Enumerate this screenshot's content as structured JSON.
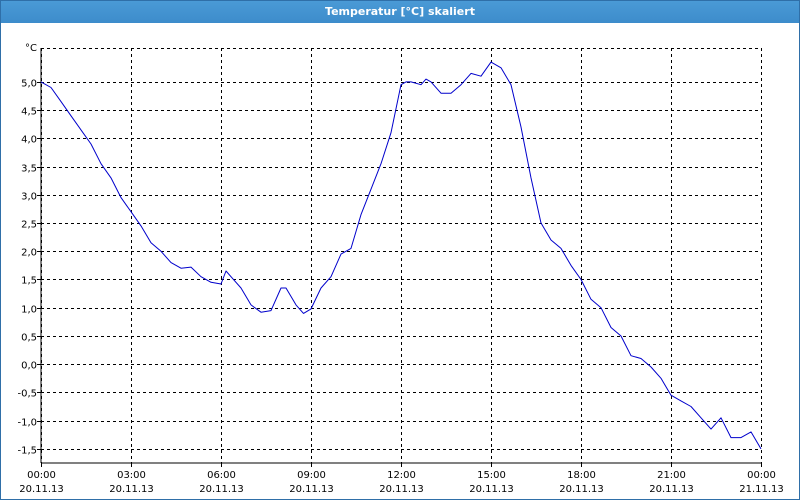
{
  "window": {
    "title": "Temperatur [°C] skaliert"
  },
  "chart_data": {
    "type": "line",
    "title": "Temperatur [°C] skaliert",
    "ylabel": "°C",
    "xlabel": "",
    "grid": true,
    "line_color": "#0000cc",
    "grid_color": "#000000",
    "ylim": [
      -1.75,
      5.6
    ],
    "xlim": [
      "2013-11-20 00:00",
      "2013-11-21 00:00"
    ],
    "y_ticks": [
      {
        "value": 5.0,
        "label": "5,0"
      },
      {
        "value": 4.5,
        "label": "4,5"
      },
      {
        "value": 4.0,
        "label": "4,0"
      },
      {
        "value": 3.5,
        "label": "3,5"
      },
      {
        "value": 3.0,
        "label": "3,0"
      },
      {
        "value": 2.5,
        "label": "2,5"
      },
      {
        "value": 2.0,
        "label": "2,0"
      },
      {
        "value": 1.5,
        "label": "1,5"
      },
      {
        "value": 1.0,
        "label": "1,0"
      },
      {
        "value": 0.5,
        "label": "0,5"
      },
      {
        "value": 0.0,
        "label": "0,0"
      },
      {
        "value": -0.5,
        "label": "-0,5"
      },
      {
        "value": -1.0,
        "label": "-1,0"
      },
      {
        "value": -1.5,
        "label": "-1,5"
      }
    ],
    "x_ticks": [
      {
        "value": "2013-11-20 00:00",
        "time": "00:00",
        "date": "20.11.13"
      },
      {
        "value": "2013-11-20 03:00",
        "time": "03:00",
        "date": "20.11.13"
      },
      {
        "value": "2013-11-20 06:00",
        "time": "06:00",
        "date": "20.11.13"
      },
      {
        "value": "2013-11-20 09:00",
        "time": "09:00",
        "date": "20.11.13"
      },
      {
        "value": "2013-11-20 12:00",
        "time": "12:00",
        "date": "20.11.13"
      },
      {
        "value": "2013-11-20 15:00",
        "time": "15:00",
        "date": "20.11.13"
      },
      {
        "value": "2013-11-20 18:00",
        "time": "18:00",
        "date": "20.11.13"
      },
      {
        "value": "2013-11-20 21:00",
        "time": "21:00",
        "date": "20.11.13"
      },
      {
        "value": "2013-11-21 00:00",
        "time": "00:00",
        "date": "21.11.13"
      }
    ],
    "series": [
      {
        "x": [
          "2013-11-20 00:00",
          "2013-11-20 00:20",
          "2013-11-20 00:40",
          "2013-11-20 01:00",
          "2013-11-20 01:20",
          "2013-11-20 01:40",
          "2013-11-20 02:00",
          "2013-11-20 02:20",
          "2013-11-20 02:40",
          "2013-11-20 03:00",
          "2013-11-20 03:20",
          "2013-11-20 03:40",
          "2013-11-20 04:00",
          "2013-11-20 04:20",
          "2013-11-20 04:40",
          "2013-11-20 05:00",
          "2013-11-20 05:20",
          "2013-11-20 05:40",
          "2013-11-20 06:00",
          "2013-11-20 06:10",
          "2013-11-20 06:20",
          "2013-11-20 06:40",
          "2013-11-20 07:00",
          "2013-11-20 07:20",
          "2013-11-20 07:40",
          "2013-11-20 08:00",
          "2013-11-20 08:10",
          "2013-11-20 08:30",
          "2013-11-20 08:45",
          "2013-11-20 09:00",
          "2013-11-20 09:20",
          "2013-11-20 09:40",
          "2013-11-20 10:00",
          "2013-11-20 10:20",
          "2013-11-20 10:40",
          "2013-11-20 11:00",
          "2013-11-20 11:20",
          "2013-11-20 11:40",
          "2013-11-20 12:00",
          "2013-11-20 12:10",
          "2013-11-20 12:20",
          "2013-11-20 12:40",
          "2013-11-20 12:50",
          "2013-11-20 13:00",
          "2013-11-20 13:20",
          "2013-11-20 13:40",
          "2013-11-20 14:00",
          "2013-11-20 14:20",
          "2013-11-20 14:40",
          "2013-11-20 15:00",
          "2013-11-20 15:20",
          "2013-11-20 15:40",
          "2013-11-20 16:00",
          "2013-11-20 16:20",
          "2013-11-20 16:40",
          "2013-11-20 17:00",
          "2013-11-20 17:20",
          "2013-11-20 17:40",
          "2013-11-20 18:00",
          "2013-11-20 18:20",
          "2013-11-20 18:40",
          "2013-11-20 19:00",
          "2013-11-20 19:20",
          "2013-11-20 19:40",
          "2013-11-20 20:00",
          "2013-11-20 20:20",
          "2013-11-20 20:40",
          "2013-11-20 21:00",
          "2013-11-20 21:20",
          "2013-11-20 21:40",
          "2013-11-20 22:00",
          "2013-11-20 22:20",
          "2013-11-20 22:40",
          "2013-11-20 23:00",
          "2013-11-20 23:20",
          "2013-11-20 23:40",
          "2013-11-21 00:00"
        ],
        "y": [
          5.0,
          4.9,
          4.65,
          4.4,
          4.15,
          3.9,
          3.55,
          3.3,
          2.95,
          2.7,
          2.45,
          2.15,
          2.0,
          1.8,
          1.7,
          1.72,
          1.55,
          1.45,
          1.42,
          1.65,
          1.55,
          1.35,
          1.05,
          0.92,
          0.95,
          1.35,
          1.35,
          1.05,
          0.9,
          0.98,
          1.35,
          1.55,
          1.95,
          2.05,
          2.65,
          3.1,
          3.55,
          4.1,
          4.95,
          5.0,
          5.0,
          4.95,
          5.05,
          5.0,
          4.8,
          4.8,
          4.95,
          5.15,
          5.1,
          5.35,
          5.25,
          4.95,
          4.2,
          3.3,
          2.5,
          2.2,
          2.05,
          1.75,
          1.5,
          1.15,
          1.0,
          0.65,
          0.5,
          0.15,
          0.1,
          -0.05,
          -0.25,
          -0.55,
          -0.65,
          -0.75,
          -0.95,
          -1.15,
          -0.95,
          -1.3,
          -1.3,
          -1.2,
          -1.5
        ]
      }
    ]
  }
}
